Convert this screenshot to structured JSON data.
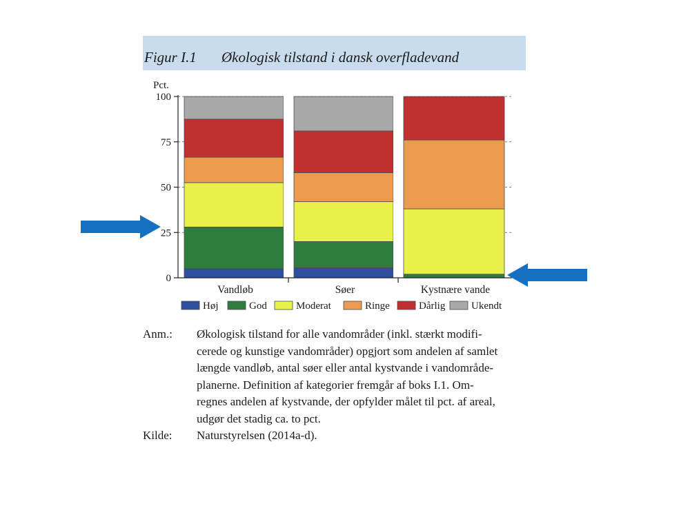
{
  "figure": {
    "number": "Figur I.1",
    "title": "Økologisk tilstand i dansk overfladevand"
  },
  "colors": {
    "Høj": "#2e4f9f",
    "God": "#2e7d3e",
    "Moderat": "#e8f04a",
    "Ringe": "#ec9b4e",
    "Dårlig": "#c0302f",
    "Ukendt": "#a8a8a8",
    "arrow": "#1570c2",
    "title_band": "#c9dced"
  },
  "chart_data": {
    "type": "bar",
    "stacked": true,
    "title": "Økologisk tilstand i dansk overfladevand",
    "ylabel": "Pct.",
    "xlabel": "",
    "ylim": [
      0,
      100
    ],
    "yticks": [
      "0",
      "25",
      "50",
      "75",
      "100"
    ],
    "categories": [
      "Vandløb",
      "Søer",
      "Kystnære vande"
    ],
    "series": [
      {
        "name": "Høj",
        "values": [
          5,
          5.5,
          0
        ]
      },
      {
        "name": "God",
        "values": [
          23,
          14.5,
          2
        ]
      },
      {
        "name": "Moderat",
        "values": [
          24.5,
          22,
          36
        ]
      },
      {
        "name": "Ringe",
        "values": [
          14,
          16,
          38
        ]
      },
      {
        "name": "Dårlig",
        "values": [
          21,
          23,
          24
        ]
      },
      {
        "name": "Ukendt",
        "values": [
          12.5,
          19,
          0
        ]
      }
    ],
    "grid": "dashed horizontal",
    "legend_position": "bottom"
  },
  "annotations": {
    "arrows": [
      {
        "points_to": "y-axis value 25",
        "direction": "right"
      },
      {
        "points_to": "Kystnære vande God share",
        "direction": "left"
      }
    ]
  },
  "notes": [
    {
      "key": "Anm.:",
      "lines": [
        "Økologisk tilstand for alle vandområder (inkl. stærkt modifi-",
        "cerede og kunstige vandområder) opgjort som andelen af samlet",
        "længde vandløb, antal søer eller antal kystvande i vandområde-",
        "planerne. Definition af kategorier fremgår af boks I.1. Om-",
        "regnes andelen af kystvande, der opfylder målet til pct. af areal,",
        "udgør det stadig ca. to pct."
      ]
    },
    {
      "key": "Kilde:",
      "lines": [
        "Naturstyrelsen (2014a-d)."
      ]
    }
  ]
}
